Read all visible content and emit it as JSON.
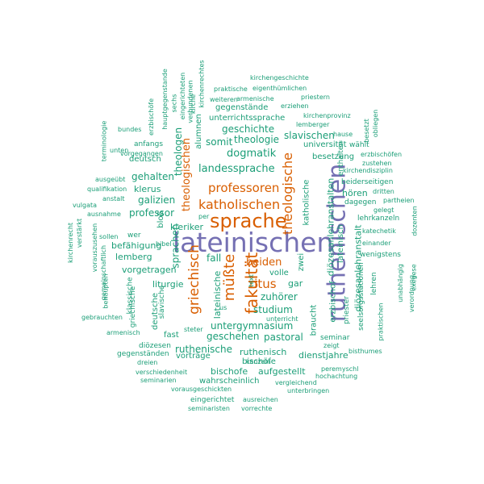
{
  "palette": {
    "purple": "#7570b3",
    "orange": "#d95f02",
    "teal": "#1b9e77"
  },
  "words": [
    {
      "text": "lateinischen",
      "color": "purple"
    },
    {
      "text": "ruthenischen",
      "color": "purple"
    },
    {
      "text": "sprache",
      "color": "orange"
    },
    {
      "text": "fakultät",
      "color": "orange"
    },
    {
      "text": "katholischen",
      "color": "orange"
    },
    {
      "text": "professoren",
      "color": "orange"
    },
    {
      "text": "theologische",
      "color": "orange"
    },
    {
      "text": "griechisch",
      "color": "orange"
    },
    {
      "text": "müßte",
      "color": "orange"
    },
    {
      "text": "ritus",
      "color": "orange"
    },
    {
      "text": "beiden",
      "color": "orange"
    },
    {
      "text": "theologischen",
      "color": "orange"
    },
    {
      "text": "kirchengeschichte",
      "color": "teal"
    },
    {
      "text": "praktische",
      "color": "teal"
    },
    {
      "text": "eigenthümlichen",
      "color": "teal"
    },
    {
      "text": "weiteren",
      "color": "teal"
    },
    {
      "text": "armenische",
      "color": "teal"
    },
    {
      "text": "priestern",
      "color": "teal"
    },
    {
      "text": "gegenstände",
      "color": "teal"
    },
    {
      "text": "erziehen",
      "color": "teal"
    },
    {
      "text": "unterrichtssprache",
      "color": "teal"
    },
    {
      "text": "kirchenprovinz",
      "color": "teal"
    },
    {
      "text": "lemberger",
      "color": "teal"
    },
    {
      "text": "geschichte",
      "color": "teal"
    },
    {
      "text": "slavischen",
      "color": "teal"
    },
    {
      "text": "hause",
      "color": "teal"
    },
    {
      "text": "somit",
      "color": "teal"
    },
    {
      "text": "theologie",
      "color": "teal"
    },
    {
      "text": "universität",
      "color": "teal"
    },
    {
      "text": "dogmatik",
      "color": "teal"
    },
    {
      "text": "landessprache",
      "color": "teal"
    },
    {
      "text": "besetzung",
      "color": "teal"
    },
    {
      "text": "wählt",
      "color": "teal"
    },
    {
      "text": "erzbischöfen",
      "color": "teal"
    },
    {
      "text": "zustehen",
      "color": "teal"
    },
    {
      "text": "kirchendisziplin",
      "color": "teal"
    },
    {
      "text": "beiderseitigen",
      "color": "teal"
    },
    {
      "text": "hören",
      "color": "teal"
    },
    {
      "text": "dritten",
      "color": "teal"
    },
    {
      "text": "dagegen",
      "color": "teal"
    },
    {
      "text": "partheien",
      "color": "teal"
    },
    {
      "text": "gelegt",
      "color": "teal"
    },
    {
      "text": "lehrkanzeln",
      "color": "teal"
    },
    {
      "text": "einander",
      "color": "teal"
    },
    {
      "text": "wenigstens",
      "color": "teal"
    },
    {
      "text": "katechetik",
      "color": "teal"
    },
    {
      "text": "lehren",
      "color": "teal"
    },
    {
      "text": "unabhängig",
      "color": "teal"
    },
    {
      "text": "verordnung",
      "color": "teal"
    },
    {
      "text": "exegese",
      "color": "teal"
    },
    {
      "text": "dozenten",
      "color": "teal"
    },
    {
      "text": "praktischen",
      "color": "teal"
    },
    {
      "text": "seelsorgsstationen",
      "color": "teal"
    },
    {
      "text": "priester",
      "color": "teal"
    },
    {
      "text": "diözesanlehranstalten",
      "color": "teal"
    },
    {
      "text": "diözesanlehranstalt",
      "color": "teal"
    },
    {
      "text": "lateinisch",
      "color": "teal"
    },
    {
      "text": "erzbischof",
      "color": "teal"
    },
    {
      "text": "katholische",
      "color": "teal"
    },
    {
      "text": "gehalten",
      "color": "teal"
    },
    {
      "text": "klerus",
      "color": "teal"
    },
    {
      "text": "deutsch",
      "color": "teal"
    },
    {
      "text": "anfangs",
      "color": "teal"
    },
    {
      "text": "vorgegangen",
      "color": "teal"
    },
    {
      "text": "bundes",
      "color": "teal"
    },
    {
      "text": "unten",
      "color": "teal"
    },
    {
      "text": "ausgeübt",
      "color": "teal"
    },
    {
      "text": "qualifikation",
      "color": "teal"
    },
    {
      "text": "vulgata",
      "color": "teal"
    },
    {
      "text": "anstalt",
      "color": "teal"
    },
    {
      "text": "ausnahme",
      "color": "teal"
    },
    {
      "text": "galizien",
      "color": "teal"
    },
    {
      "text": "professor",
      "color": "teal"
    },
    {
      "text": "kleriker",
      "color": "teal"
    },
    {
      "text": "sollen",
      "color": "teal"
    },
    {
      "text": "bibel",
      "color": "teal"
    },
    {
      "text": "wer",
      "color": "teal"
    },
    {
      "text": "befähigung",
      "color": "teal"
    },
    {
      "text": "lemberg",
      "color": "teal"
    },
    {
      "text": "vorgetragen",
      "color": "teal"
    },
    {
      "text": "liturgie",
      "color": "teal"
    },
    {
      "text": "fall",
      "color": "teal"
    },
    {
      "text": "per",
      "color": "teal"
    },
    {
      "text": "zwei",
      "color": "teal"
    },
    {
      "text": "volle",
      "color": "teal"
    },
    {
      "text": "gar",
      "color": "teal"
    },
    {
      "text": "zuhörer",
      "color": "teal"
    },
    {
      "text": "studium",
      "color": "teal"
    },
    {
      "text": "pastoral",
      "color": "teal"
    },
    {
      "text": "untergymnasium",
      "color": "teal"
    },
    {
      "text": "geschehen",
      "color": "teal"
    },
    {
      "text": "fast",
      "color": "teal"
    },
    {
      "text": "vorträge",
      "color": "teal"
    },
    {
      "text": "ruthenische",
      "color": "teal"
    },
    {
      "text": "ruthenisch",
      "color": "teal"
    },
    {
      "text": "bischöfe",
      "color": "teal"
    },
    {
      "text": "bischofe",
      "color": "teal"
    },
    {
      "text": "aufgestellt",
      "color": "teal"
    },
    {
      "text": "dienstjahre",
      "color": "teal"
    },
    {
      "text": "seminar",
      "color": "teal"
    },
    {
      "text": "zeigt",
      "color": "teal"
    },
    {
      "text": "bisthumes",
      "color": "teal"
    },
    {
      "text": "peremyschl",
      "color": "teal"
    },
    {
      "text": "hochachtung",
      "color": "teal"
    },
    {
      "text": "vergleichend",
      "color": "teal"
    },
    {
      "text": "kanzeln",
      "color": "teal"
    },
    {
      "text": "wahrscheinlich",
      "color": "teal"
    },
    {
      "text": "unterbringen",
      "color": "teal"
    },
    {
      "text": "verschiedenheit",
      "color": "teal"
    },
    {
      "text": "seminarien",
      "color": "teal"
    },
    {
      "text": "vorausgeschickten",
      "color": "teal"
    },
    {
      "text": "eingerichtet",
      "color": "teal"
    },
    {
      "text": "ausreichen",
      "color": "teal"
    },
    {
      "text": "seminaristen",
      "color": "teal"
    },
    {
      "text": "vorrechte",
      "color": "teal"
    },
    {
      "text": "diözesen",
      "color": "teal"
    },
    {
      "text": "gegenständen",
      "color": "teal"
    },
    {
      "text": "dreien",
      "color": "teal"
    },
    {
      "text": "armenisch",
      "color": "teal"
    },
    {
      "text": "steter",
      "color": "teal"
    },
    {
      "text": "unterricht",
      "color": "teal"
    },
    {
      "text": "gebrauchten",
      "color": "teal"
    },
    {
      "text": "braucht",
      "color": "teal"
    },
    {
      "text": "text",
      "color": "teal"
    },
    {
      "text": "us",
      "color": "teal"
    },
    {
      "text": "lateinische",
      "color": "teal"
    },
    {
      "text": "deutsche",
      "color": "teal"
    },
    {
      "text": "slavische",
      "color": "teal"
    },
    {
      "text": "klassische",
      "color": "teal"
    },
    {
      "text": "griechische",
      "color": "teal"
    },
    {
      "text": "behaupten",
      "color": "teal"
    },
    {
      "text": "gemeinschaftlich",
      "color": "teal"
    },
    {
      "text": "vorauszusehen",
      "color": "teal"
    },
    {
      "text": "verstärkt",
      "color": "teal"
    },
    {
      "text": "kirchenrecht",
      "color": "teal"
    },
    {
      "text": "sprachen",
      "color": "teal"
    },
    {
      "text": "bloß",
      "color": "teal"
    },
    {
      "text": "theologen",
      "color": "teal"
    },
    {
      "text": "alumnen",
      "color": "teal"
    },
    {
      "text": "terminologie",
      "color": "teal"
    },
    {
      "text": "erzbischöfe",
      "color": "teal"
    },
    {
      "text": "hauptgegenstande",
      "color": "teal"
    },
    {
      "text": "sechs",
      "color": "teal"
    },
    {
      "text": "eingerichteten",
      "color": "teal"
    },
    {
      "text": "verbundenen",
      "color": "teal"
    },
    {
      "text": "kirche",
      "color": "teal"
    },
    {
      "text": "kirchenrechtes",
      "color": "teal"
    },
    {
      "text": "besetzt",
      "color": "teal"
    },
    {
      "text": "obliegen",
      "color": "teal"
    },
    {
      "text": "enthalten",
      "color": "teal"
    }
  ]
}
